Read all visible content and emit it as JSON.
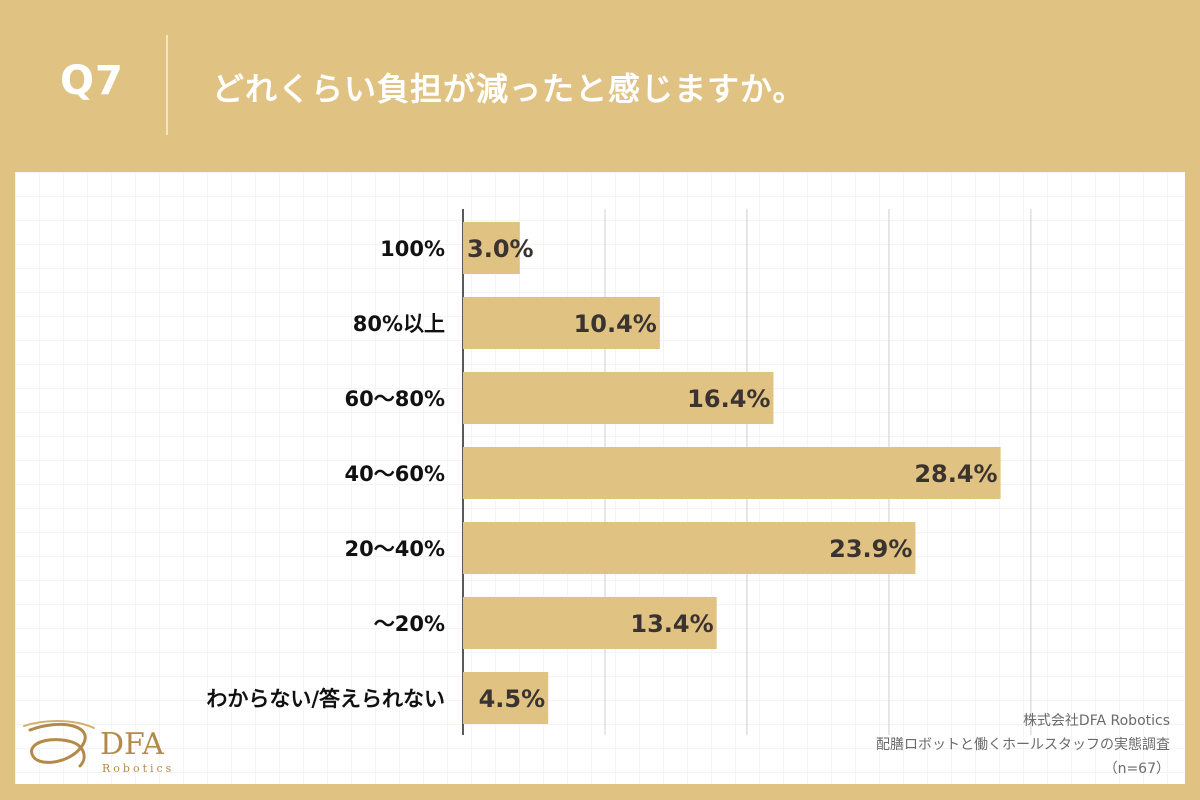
{
  "header": {
    "question_number": "Q7",
    "question_text": "どれくらい負担が減ったと感じますか。"
  },
  "chart_data": {
    "type": "bar",
    "orientation": "horizontal",
    "categories": [
      "100%",
      "80%以上",
      "60〜80%",
      "40〜60%",
      "20〜40%",
      "〜20%",
      "わからない/答えられない"
    ],
    "values": [
      3.0,
      10.4,
      16.4,
      28.4,
      23.9,
      13.4,
      4.5
    ],
    "value_labels": [
      "3.0%",
      "10.4%",
      "16.4%",
      "28.4%",
      "23.9%",
      "13.4%",
      "4.5%"
    ],
    "xlim": [
      0,
      40
    ],
    "grid_values": [
      0,
      7.5,
      15,
      22.5,
      30
    ],
    "grid": true,
    "bar_color": "#E0C283",
    "label_color": "#3a3330"
  },
  "source": {
    "company": "株式会社DFA Robotics",
    "survey_title": "配膳ロボットと働くホールスタッフの実態調査",
    "sample": "（n=67）"
  },
  "logo": {
    "name": "DFA",
    "tagline": "Robotics",
    "color": "#B48A49"
  }
}
